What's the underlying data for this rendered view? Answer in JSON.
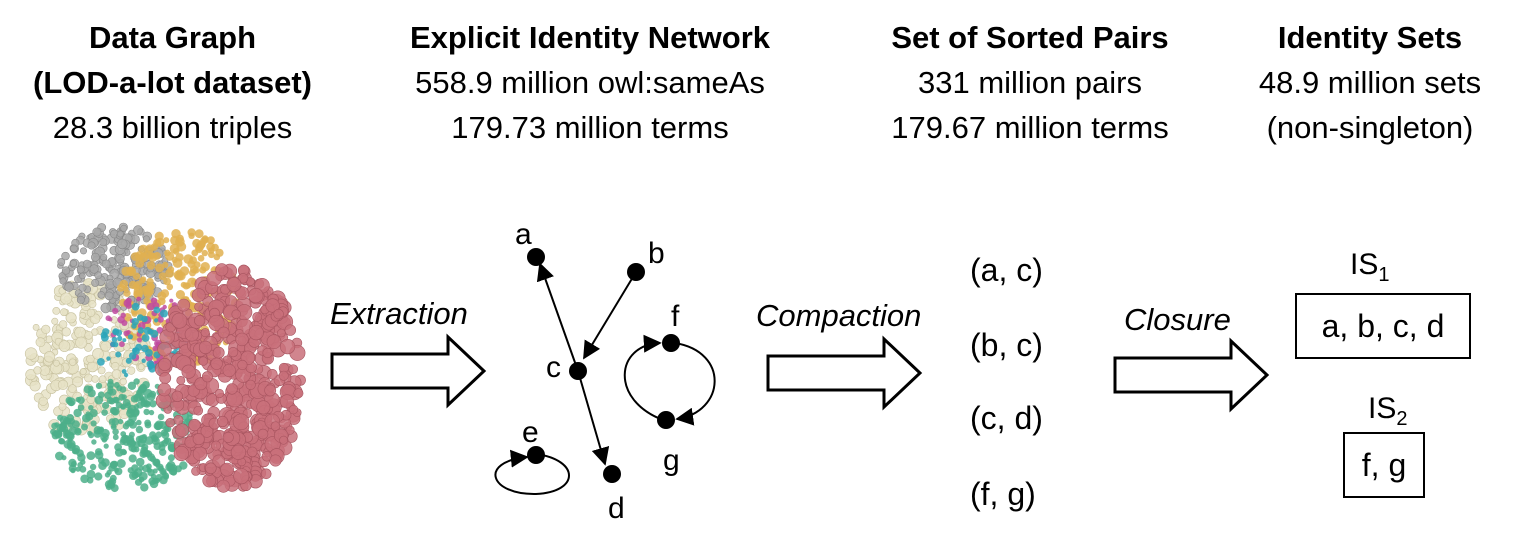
{
  "columns": [
    {
      "title": "Data Graph",
      "subtitle": "(LOD-a-lot dataset)",
      "detail": "28.3 billion triples"
    },
    {
      "title": "Explicit Identity Network",
      "line1": "558.9 million owl:sameAs",
      "line2": "179.73 million terms"
    },
    {
      "title": "Set of Sorted Pairs",
      "line1": "331 million pairs",
      "line2": "179.67 million terms"
    },
    {
      "title": "Identity Sets",
      "line1": "48.9 million sets",
      "line2": "(non-singleton)"
    }
  ],
  "arrows": {
    "extraction": "Extraction",
    "compaction": "Compaction",
    "closure": "Closure"
  },
  "graph_nodes": {
    "a": "a",
    "b": "b",
    "c": "c",
    "d": "d",
    "e": "e",
    "f": "f",
    "g": "g"
  },
  "pairs": [
    "(a, c)",
    "(b, c)",
    "(c, d)",
    "(f,  g)"
  ],
  "identity_sets": [
    {
      "label": "IS",
      "subscript": "1",
      "members": "a, b, c, d"
    },
    {
      "label": "IS",
      "subscript": "2",
      "members": "f, g"
    }
  ],
  "colors": {
    "cluster_pink": "#c9707a",
    "cluster_gold": "#e0b050",
    "cluster_grey": "#a8a8a8",
    "cluster_green": "#4caf8a",
    "cluster_cream": "#e6e2c6",
    "cluster_magenta": "#c04aa0",
    "cluster_teal": "#2aa4b8"
  }
}
